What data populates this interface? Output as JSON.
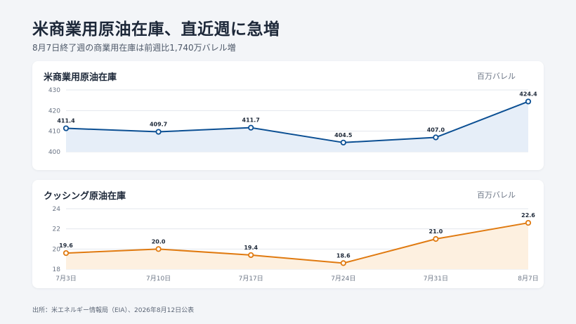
{
  "header": {
    "title": "米商業用原油在庫、直近週に急増",
    "subtitle": "8月7日終了週の商業用在庫は前週比1,740万バレル増"
  },
  "footer": {
    "source": "出所：米エネルギー情報局（EIA）、2026年8月12日公表"
  },
  "colors": {
    "commercial": "#0b4f93",
    "commercial_fill": "#e6eef8",
    "cushing": "#e07a10",
    "cushing_fill": "#fdf0e0",
    "grid": "#e3e7ed"
  },
  "chart_data": [
    {
      "type": "area",
      "title": "米商業用原油在庫",
      "unit": "百万バレル",
      "categories": [
        "7月3日",
        "7月10日",
        "7月17日",
        "7月24日",
        "7月31日",
        "8月7日"
      ],
      "values": [
        411.4,
        409.7,
        411.7,
        404.5,
        407.0,
        424.4
      ],
      "value_labels": [
        "411.4",
        "409.7",
        "411.7",
        "404.5",
        "407.0",
        "424.4"
      ],
      "yticks": [
        "400",
        "410",
        "420",
        "430"
      ],
      "ylim": [
        400,
        430
      ],
      "show_xticks": false,
      "grid": true
    },
    {
      "type": "area",
      "title": "クッシング原油在庫",
      "unit": "百万バレル",
      "categories": [
        "7月3日",
        "7月10日",
        "7月17日",
        "7月24日",
        "7月31日",
        "8月7日"
      ],
      "values": [
        19.6,
        20.0,
        19.4,
        18.6,
        21.0,
        22.6
      ],
      "value_labels": [
        "19.6",
        "20.0",
        "19.4",
        "18.6",
        "21.0",
        "22.6"
      ],
      "yticks": [
        "18",
        "20",
        "22",
        "24"
      ],
      "ylim": [
        18,
        24
      ],
      "show_xticks": true,
      "grid": true
    }
  ]
}
